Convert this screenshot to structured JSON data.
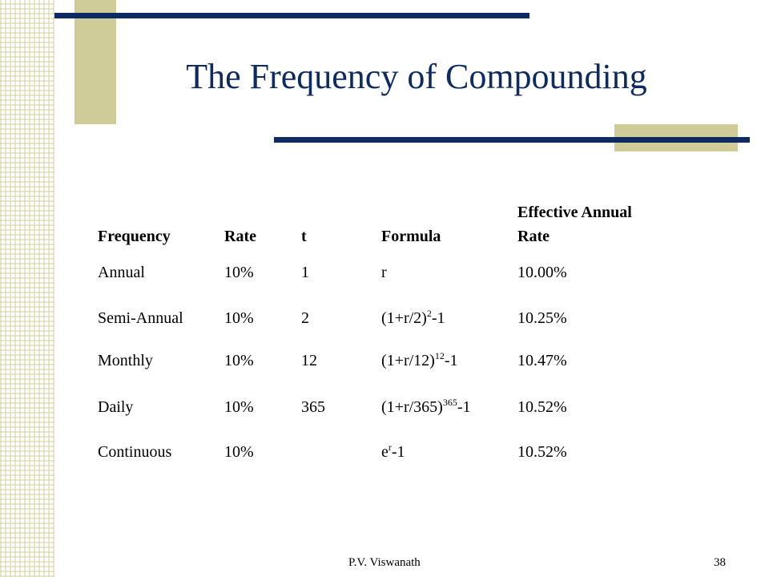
{
  "slide": {
    "title": "The Frequency of Compounding",
    "footer_author": "P.V. Viswanath",
    "page_number": "38"
  },
  "table": {
    "headers": {
      "frequency": "Frequency",
      "rate": "Rate",
      "t": "t",
      "formula": "Formula",
      "effective_line1": "Effective Annual",
      "effective_line2": "Rate"
    },
    "rows": [
      {
        "frequency": "Annual",
        "rate": "10%",
        "t": "1",
        "formula_base": "r",
        "formula_exp": "",
        "formula_tail": "",
        "effective": "10.00%"
      },
      {
        "frequency": "Semi-Annual",
        "rate": "10%",
        "t": "2",
        "formula_base": "(1+r/2)",
        "formula_exp": "2",
        "formula_tail": "-1",
        "effective": "10.25%"
      },
      {
        "frequency": "Monthly",
        "rate": "10%",
        "t": "12",
        "formula_base": "(1+r/12)",
        "formula_exp": "12",
        "formula_tail": "-1",
        "effective": "10.47%"
      },
      {
        "frequency": "Daily",
        "rate": "10%",
        "t": "365",
        "formula_base": "(1+r/365)",
        "formula_exp": "365",
        "formula_tail": "-1",
        "effective": "10.52%"
      },
      {
        "frequency": "Continuous",
        "rate": "10%",
        "t": "",
        "formula_base": "e",
        "formula_exp": "r",
        "formula_tail": "-1",
        "effective": "10.52%"
      }
    ]
  },
  "colors": {
    "title": "#0d2b62",
    "accent_bar": "#0d2b62",
    "decor_tan": "#cfcc99"
  }
}
